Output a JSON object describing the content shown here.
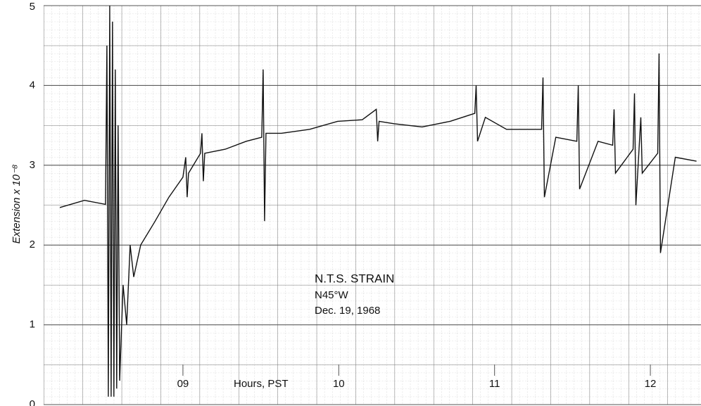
{
  "chart_data": {
    "type": "line",
    "y_label": "Extension x 10⁻⁸",
    "x_label": "Hours, PST",
    "annotations": [
      "N.T.S.  STRAIN",
      "N45°W",
      "Dec. 19,  1968"
    ],
    "color": "#111111",
    "grid": true,
    "xlim": [
      8.106,
      12.325
    ],
    "ylim": [
      0,
      5
    ],
    "xticks": [
      {
        "value": 9,
        "label": "09"
      },
      10,
      11,
      12
    ],
    "yticks": [
      0,
      1,
      2,
      3,
      4,
      5
    ],
    "x": [
      8.21,
      8.368,
      8.503,
      8.512,
      8.521,
      8.53,
      8.539,
      8.548,
      8.557,
      8.566,
      8.575,
      8.584,
      8.594,
      8.616,
      8.639,
      8.661,
      8.684,
      8.729,
      8.819,
      8.91,
      9.0,
      9.018,
      9.027,
      9.036,
      9.113,
      9.122,
      9.131,
      9.14,
      9.271,
      9.406,
      9.506,
      9.515,
      9.524,
      9.533,
      9.632,
      9.813,
      9.993,
      10.151,
      10.241,
      10.25,
      10.259,
      10.354,
      10.535,
      10.715,
      10.873,
      10.882,
      10.891,
      10.941,
      11.077,
      11.302,
      11.311,
      11.32,
      11.393,
      11.528,
      11.537,
      11.546,
      11.664,
      11.758,
      11.767,
      11.776,
      11.889,
      11.898,
      11.907,
      11.939,
      11.948,
      12.047,
      12.056,
      12.065,
      12.16,
      12.296
    ],
    "values": [
      2.47,
      2.56,
      2.51,
      4.5,
      0.1,
      5.0,
      0.1,
      4.8,
      0.1,
      4.2,
      0.2,
      3.5,
      0.3,
      1.5,
      1.0,
      2.0,
      1.6,
      2.0,
      2.29,
      2.6,
      2.85,
      3.1,
      2.6,
      2.9,
      3.15,
      3.4,
      2.8,
      3.15,
      3.2,
      3.3,
      3.35,
      4.2,
      2.3,
      3.4,
      3.4,
      3.45,
      3.55,
      3.57,
      3.7,
      3.3,
      3.55,
      3.52,
      3.48,
      3.55,
      3.65,
      4.0,
      3.3,
      3.6,
      3.45,
      3.45,
      4.1,
      2.6,
      3.35,
      3.3,
      4.0,
      2.7,
      3.3,
      3.25,
      3.7,
      2.9,
      3.2,
      3.9,
      2.5,
      3.6,
      2.9,
      3.15,
      4.4,
      1.9,
      3.1,
      3.05
    ]
  }
}
